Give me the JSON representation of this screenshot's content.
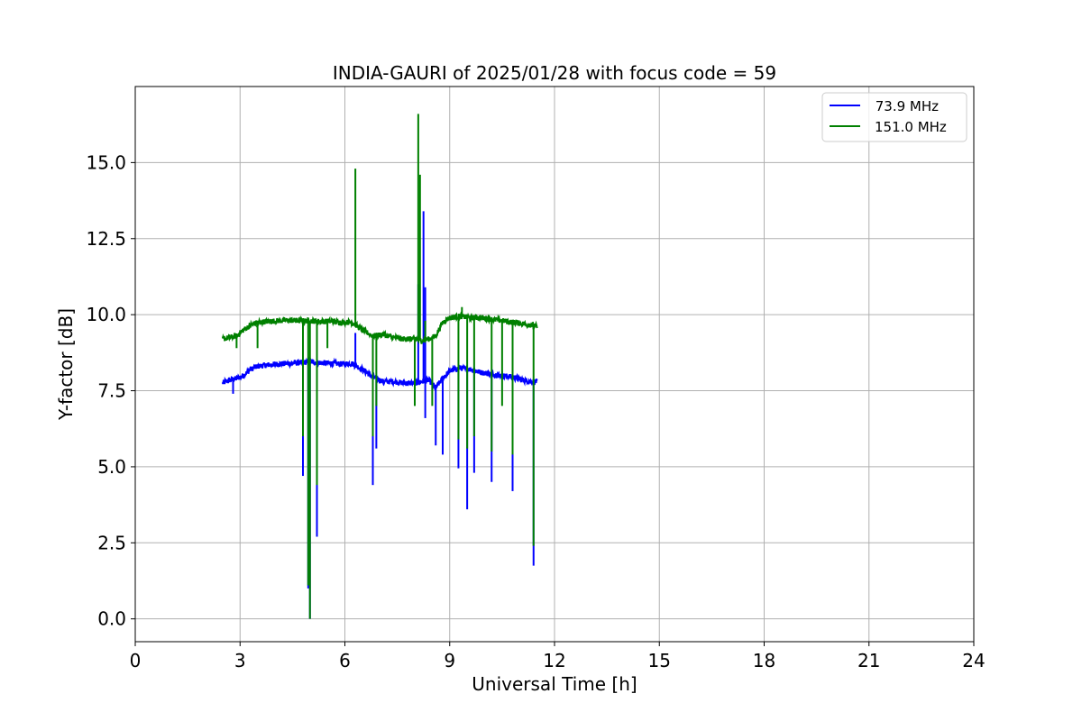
{
  "chart_data": {
    "type": "line",
    "title": "INDIA-GAURI of 2025/01/28 with focus code = 59",
    "xlabel": "Universal Time [h]",
    "ylabel": "Y-factor [dB]",
    "xlim": [
      0,
      24
    ],
    "ylim": [
      -0.75,
      17.5
    ],
    "xticks": [
      0,
      3,
      6,
      9,
      12,
      15,
      18,
      21,
      24
    ],
    "xtick_labels": [
      "0",
      "3",
      "6",
      "9",
      "12",
      "15",
      "18",
      "21",
      "24"
    ],
    "yticks": [
      0.0,
      2.5,
      5.0,
      7.5,
      10.0,
      12.5,
      15.0
    ],
    "ytick_labels": [
      "0.0",
      "2.5",
      "5.0",
      "7.5",
      "10.0",
      "12.5",
      "15.0"
    ],
    "grid": true,
    "legend_position": "top-right",
    "series": [
      {
        "name": " 73.9 MHz",
        "color": "#0000ff",
        "x": [
          2.5,
          2.7,
          2.9,
          3.1,
          3.3,
          3.5,
          3.8,
          4.1,
          4.4,
          4.7,
          5.0,
          5.3,
          5.6,
          5.9,
          6.2,
          6.5,
          6.8,
          7.1,
          7.4,
          7.7,
          8.0,
          8.2,
          8.4,
          8.6,
          8.8,
          9.0,
          9.3,
          9.6,
          9.9,
          10.2,
          10.5,
          10.8,
          11.1,
          11.4,
          11.5
        ],
        "y": [
          7.75,
          7.85,
          7.9,
          8.0,
          8.2,
          8.3,
          8.35,
          8.38,
          8.4,
          8.42,
          8.45,
          8.42,
          8.4,
          8.38,
          8.4,
          8.2,
          7.95,
          7.8,
          7.8,
          7.75,
          7.75,
          7.8,
          7.85,
          7.6,
          7.9,
          8.15,
          8.25,
          8.2,
          8.1,
          8.05,
          8.0,
          7.95,
          7.85,
          7.8,
          7.8
        ],
        "dips": [
          [
            2.8,
            7.4
          ],
          [
            4.8,
            4.7
          ],
          [
            4.95,
            1.0
          ],
          [
            5.0,
            0.0
          ],
          [
            5.2,
            2.7
          ],
          [
            6.8,
            4.4
          ],
          [
            6.9,
            5.6
          ],
          [
            8.3,
            6.6
          ],
          [
            8.6,
            5.7
          ],
          [
            8.8,
            5.4
          ],
          [
            9.25,
            4.95
          ],
          [
            9.5,
            3.6
          ],
          [
            9.7,
            4.8
          ],
          [
            10.2,
            4.5
          ],
          [
            10.8,
            4.2
          ],
          [
            11.4,
            1.75
          ]
        ],
        "spikes": [
          [
            6.3,
            9.4
          ],
          [
            8.1,
            11.0
          ],
          [
            8.25,
            13.4
          ],
          [
            8.3,
            10.9
          ]
        ]
      },
      {
        "name": "151.0 MHz",
        "color": "#008000",
        "x": [
          2.5,
          2.7,
          2.9,
          3.1,
          3.3,
          3.5,
          3.8,
          4.1,
          4.4,
          4.7,
          5.0,
          5.3,
          5.6,
          5.9,
          6.2,
          6.5,
          6.8,
          7.1,
          7.4,
          7.7,
          8.0,
          8.2,
          8.4,
          8.6,
          8.8,
          9.0,
          9.3,
          9.6,
          9.9,
          10.2,
          10.5,
          10.8,
          11.1,
          11.4,
          11.5
        ],
        "y": [
          9.2,
          9.25,
          9.3,
          9.5,
          9.65,
          9.75,
          9.78,
          9.8,
          9.82,
          9.8,
          9.8,
          9.78,
          9.78,
          9.75,
          9.75,
          9.5,
          9.3,
          9.35,
          9.25,
          9.2,
          9.2,
          9.15,
          9.2,
          9.3,
          9.75,
          9.9,
          9.95,
          9.9,
          9.9,
          9.85,
          9.8,
          9.75,
          9.7,
          9.65,
          9.6
        ],
        "dips": [
          [
            2.9,
            8.9
          ],
          [
            3.5,
            8.9
          ],
          [
            4.8,
            6.0
          ],
          [
            4.95,
            1.1
          ],
          [
            5.0,
            0.0
          ],
          [
            5.2,
            4.4
          ],
          [
            5.5,
            8.9
          ],
          [
            6.8,
            6.0
          ],
          [
            6.9,
            7.0
          ],
          [
            8.0,
            7.0
          ],
          [
            8.5,
            7.0
          ],
          [
            9.25,
            5.9
          ],
          [
            9.5,
            5.6
          ],
          [
            9.7,
            6.0
          ],
          [
            10.2,
            5.5
          ],
          [
            10.5,
            7.0
          ],
          [
            10.8,
            5.4
          ],
          [
            11.4,
            2.4
          ]
        ],
        "spikes": [
          [
            6.3,
            14.8
          ],
          [
            8.1,
            16.6
          ],
          [
            8.15,
            14.6
          ],
          [
            8.3,
            9.8
          ],
          [
            9.35,
            10.25
          ]
        ]
      }
    ]
  }
}
